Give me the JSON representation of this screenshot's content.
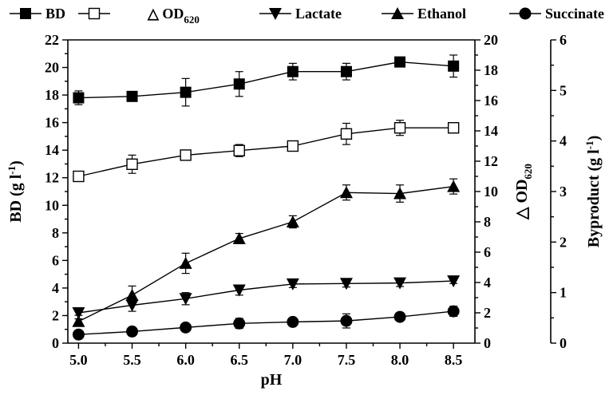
{
  "chart_data": {
    "type": "line",
    "x": [
      5.0,
      5.5,
      6.0,
      6.5,
      7.0,
      7.5,
      8.0,
      8.5
    ],
    "x_ticks": [
      "5.0",
      "5.5",
      "6.0",
      "6.5",
      "7.0",
      "7.5",
      "8.0",
      "8.5"
    ],
    "xlabel": "pH",
    "xlim": [
      4.9,
      8.7
    ],
    "axes": {
      "left": {
        "label_main": "BD",
        "label_unit": "(g l",
        "label_sup": "-1",
        "label_close": ")",
        "lim": [
          0,
          22
        ],
        "ticks": [
          0,
          2,
          4,
          6,
          8,
          10,
          12,
          14,
          16,
          18,
          20,
          22
        ]
      },
      "right1": {
        "label_main": "△ OD",
        "label_sub": "620",
        "lim": [
          0,
          20
        ],
        "ticks": [
          0,
          2,
          4,
          6,
          8,
          10,
          12,
          14,
          16,
          18,
          20
        ]
      },
      "right2": {
        "label_main": "Byproduct",
        "label_unit": "(g l",
        "label_sup": "-1",
        "label_close": ")",
        "lim": [
          0,
          6
        ],
        "ticks": [
          0,
          1,
          2,
          3,
          4,
          5,
          6
        ]
      }
    },
    "legend_position": "top",
    "series": [
      {
        "name": "BD",
        "axis": "left",
        "marker": "square-filled",
        "values": [
          17.8,
          17.9,
          18.2,
          18.8,
          19.7,
          19.7,
          20.4,
          20.1
        ],
        "errors": [
          0.5,
          0.2,
          1.0,
          0.9,
          0.6,
          0.6,
          0.2,
          0.8
        ]
      },
      {
        "name": "OD620",
        "axis": "right1",
        "marker": "square-open",
        "values": [
          11.0,
          11.8,
          12.4,
          12.7,
          13.0,
          13.8,
          14.2,
          14.2
        ],
        "errors": [
          0.3,
          0.6,
          0.3,
          0.4,
          0.3,
          0.7,
          0.5,
          0.3
        ]
      },
      {
        "name": "Lactate",
        "axis": "right2",
        "marker": "triangle-down-filled",
        "values": [
          0.6,
          0.75,
          0.88,
          1.05,
          1.17,
          1.18,
          1.19,
          1.23
        ],
        "errors": [
          0.05,
          0.12,
          0.12,
          0.1,
          0.07,
          0.07,
          0.07,
          0.05
        ]
      },
      {
        "name": "Ethanol",
        "axis": "right2",
        "marker": "triangle-up-filled",
        "values": [
          0.43,
          0.95,
          1.58,
          2.07,
          2.4,
          2.98,
          2.96,
          3.1
        ],
        "errors": [
          0.05,
          0.18,
          0.2,
          0.1,
          0.12,
          0.15,
          0.17,
          0.15
        ]
      },
      {
        "name": "Succinate",
        "axis": "right2",
        "marker": "circle-filled",
        "values": [
          0.17,
          0.23,
          0.31,
          0.39,
          0.42,
          0.44,
          0.52,
          0.63
        ],
        "errors": [
          0.04,
          0.04,
          0.07,
          0.1,
          0.05,
          0.14,
          0.04,
          0.1
        ]
      }
    ]
  },
  "legend": {
    "items": [
      {
        "label": "BD",
        "marker": "square-filled"
      },
      {
        "label": "",
        "marker": "square-open"
      },
      {
        "label": "△ OD",
        "sub": "620",
        "marker": "none"
      },
      {
        "label": "Lactate",
        "marker": "triangle-down-filled"
      },
      {
        "label": "Ethanol",
        "marker": "triangle-up-filled"
      },
      {
        "label": "Succinate",
        "marker": "circle-filled"
      }
    ]
  }
}
